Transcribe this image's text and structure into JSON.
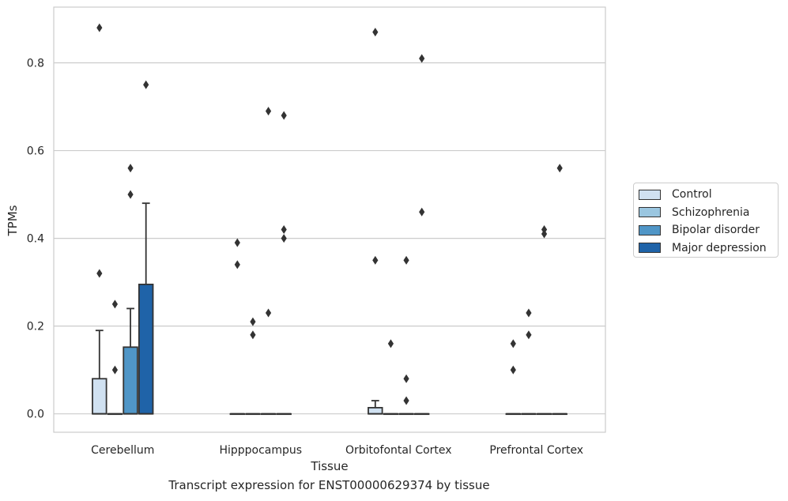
{
  "chart_data": {
    "type": "box",
    "caption": "Transcript expression for ENST00000629374 by tissue",
    "xlabel": "Tissue",
    "ylabel": "TPMs",
    "ylim": [
      -0.042,
      0.927
    ],
    "yticks": [
      0.0,
      0.2,
      0.4,
      0.6,
      0.8
    ],
    "ytick_labels": [
      "0.0",
      "0.2",
      "0.4",
      "0.6",
      "0.8"
    ],
    "grid": true,
    "legend_position": "right",
    "categories": [
      "Cerebellum",
      "Hipppocampus",
      "Orbitofontal Cortex",
      "Prefrontal Cortex"
    ],
    "series": [
      {
        "name": "Control",
        "color": "#d0e1f1",
        "boxes": [
          {
            "q1": 0.0,
            "median": 0.0,
            "q3": 0.08,
            "whisker_low": 0.0,
            "whisker_high": 0.19,
            "outliers": [
              0.32,
              0.88
            ]
          },
          {
            "q1": 0.0,
            "median": 0.0,
            "q3": 0.0,
            "whisker_low": 0.0,
            "whisker_high": 0.0,
            "outliers": [
              0.34,
              0.39
            ]
          },
          {
            "q1": 0.0,
            "median": 0.0,
            "q3": 0.014,
            "whisker_low": 0.0,
            "whisker_high": 0.03,
            "outliers": [
              0.35,
              0.87
            ]
          },
          {
            "q1": 0.0,
            "median": 0.0,
            "q3": 0.0,
            "whisker_low": 0.0,
            "whisker_high": 0.0,
            "outliers": [
              0.1,
              0.16
            ]
          }
        ]
      },
      {
        "name": "Schizophrenia",
        "color": "#9ac6e0",
        "boxes": [
          {
            "q1": 0.0,
            "median": 0.0,
            "q3": 0.0,
            "whisker_low": 0.0,
            "whisker_high": 0.0,
            "outliers": [
              0.1,
              0.25
            ]
          },
          {
            "q1": 0.0,
            "median": 0.0,
            "q3": 0.0,
            "whisker_low": 0.0,
            "whisker_high": 0.0,
            "outliers": [
              0.18,
              0.21
            ]
          },
          {
            "q1": 0.0,
            "median": 0.0,
            "q3": 0.0,
            "whisker_low": 0.0,
            "whisker_high": 0.0,
            "outliers": [
              0.16
            ]
          },
          {
            "q1": 0.0,
            "median": 0.0,
            "q3": 0.0,
            "whisker_low": 0.0,
            "whisker_high": 0.0,
            "outliers": [
              0.18,
              0.23
            ]
          }
        ]
      },
      {
        "name": "Bipolar disorder",
        "color": "#5096c7",
        "boxes": [
          {
            "q1": 0.0,
            "median": 0.0,
            "q3": 0.152,
            "whisker_low": 0.0,
            "whisker_high": 0.24,
            "outliers": [
              0.5,
              0.56
            ]
          },
          {
            "q1": 0.0,
            "median": 0.0,
            "q3": 0.0,
            "whisker_low": 0.0,
            "whisker_high": 0.0,
            "outliers": [
              0.23,
              0.69
            ]
          },
          {
            "q1": 0.0,
            "median": 0.0,
            "q3": 0.0,
            "whisker_low": 0.0,
            "whisker_high": 0.0,
            "outliers": [
              0.03,
              0.08,
              0.35
            ]
          },
          {
            "q1": 0.0,
            "median": 0.0,
            "q3": 0.0,
            "whisker_low": 0.0,
            "whisker_high": 0.0,
            "outliers": [
              0.41,
              0.42
            ]
          }
        ]
      },
      {
        "name": "Major depression",
        "color": "#1f63a8",
        "boxes": [
          {
            "q1": 0.0,
            "median": 0.0,
            "q3": 0.295,
            "whisker_low": 0.0,
            "whisker_high": 0.48,
            "outliers": [
              0.75
            ]
          },
          {
            "q1": 0.0,
            "median": 0.0,
            "q3": 0.0,
            "whisker_low": 0.0,
            "whisker_high": 0.0,
            "outliers": [
              0.4,
              0.42,
              0.68
            ]
          },
          {
            "q1": 0.0,
            "median": 0.0,
            "q3": 0.0,
            "whisker_low": 0.0,
            "whisker_high": 0.0,
            "outliers": [
              0.46,
              0.81
            ]
          },
          {
            "q1": 0.0,
            "median": 0.0,
            "q3": 0.0,
            "whisker_low": 0.0,
            "whisker_high": 0.0,
            "outliers": [
              0.56
            ]
          }
        ]
      }
    ]
  }
}
